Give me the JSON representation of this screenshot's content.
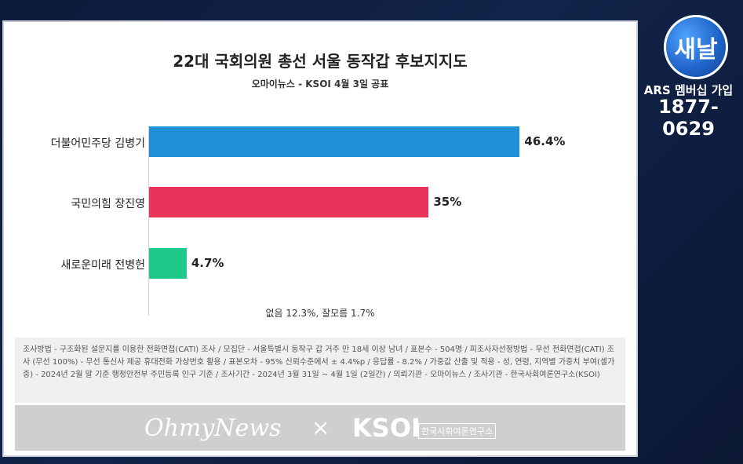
{
  "chart_data": {
    "type": "bar",
    "orientation": "horizontal",
    "title": "22대 국회의원 총선 서울 동작갑 후보지지도",
    "subtitle": "오마이뉴스 - KSOI 4월 3일 공표",
    "categories": [
      "더불어민주당 김병기",
      "국민의힘 장진영",
      "새로운미래 전병헌"
    ],
    "values": [
      46.4,
      35,
      4.7
    ],
    "value_labels": [
      "46.4%",
      "35%",
      "4.7%"
    ],
    "colors": [
      "#1e90d8",
      "#e8335a",
      "#1fc98a"
    ],
    "xlim": [
      0,
      55
    ],
    "grid": false,
    "note": "없음 12.3%, 잘모름 1.7%"
  },
  "footnote": "조사방법 - 구조화된 설문지를 이용한 전화면접(CATI) 조사 / 모집단 - 서울특별시 동작구 갑 거주 만 18세 이상 남녀 / 표본수 - 504명 / 피조사자선정방법 - 무선 전화면접(CATI) 조사 (무선 100%) - 무선 통신사 제공 휴대전화 가상번호 활용 / 표본오차 - 95% 신뢰수준에서 ± 4.4%p / 응답률 - 8.2% / 가중값 산출 및 적용 - 성, 연령, 지역별 가중치 부여(셀가중) - 2024년 2월 말 기준 행정안전부 주민등록 인구 기준 / 조사기간 - 2024년 3월 31일 ~ 4월 1일 (2일간) / 의뢰기관 - 오마이뉴스 / 조사기관 - 한국사회여론연구소(KSOI)",
  "logos": {
    "ohmynews": "OhmyNews",
    "separator": "×",
    "ksoi": "KSOI",
    "ksoi_sub": "한국사회여론연구소"
  },
  "broadcast": {
    "logo_text": "새날",
    "line1": "ARS 멤버십 가입",
    "line2": "1877-0629"
  }
}
